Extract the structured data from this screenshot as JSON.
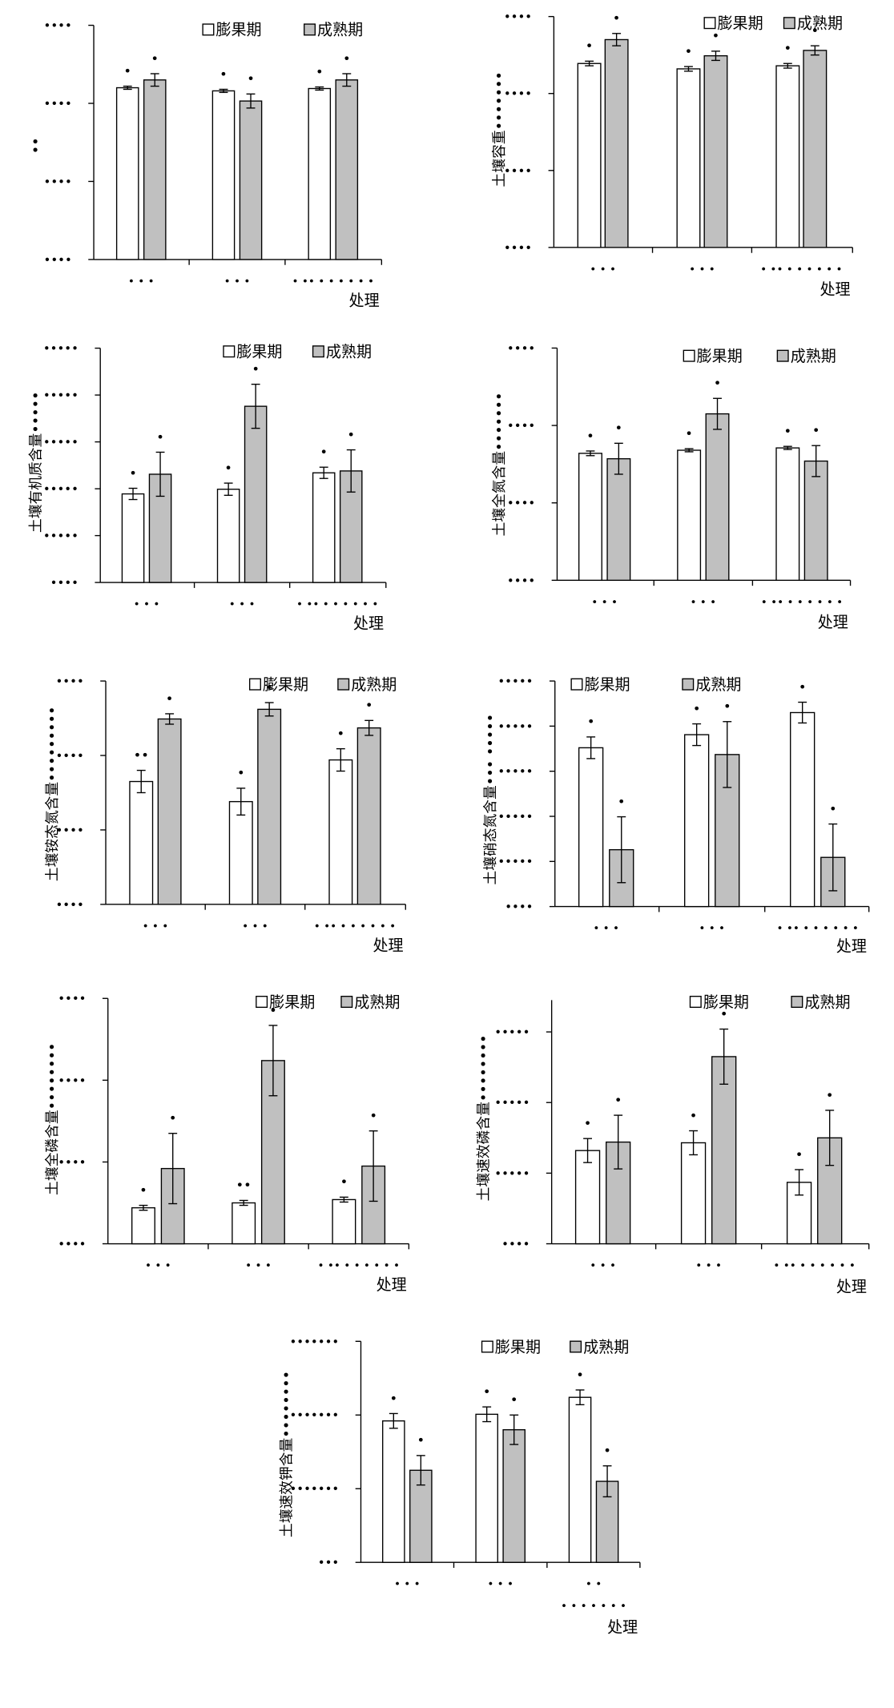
{
  "colors": {
    "series_1_fill": "#ffffff",
    "series_2_fill": "#c0c0c0",
    "line": "#000000"
  },
  "chart_data": [
    {
      "type": "bar",
      "ylabel": "••",
      "xlabel": "处理",
      "legend": "top-right",
      "categories": [
        "• • •",
        "• • •",
        "• •• • • • • • •"
      ],
      "ylim": [
        0,
        3
      ],
      "yticks": [
        0,
        1,
        2,
        3
      ],
      "ytick_labels": [
        "••••",
        "••••",
        "••••",
        "••••"
      ],
      "series": [
        {
          "name": "膨果期",
          "values": [
            2.2,
            2.16,
            2.19
          ],
          "errors": [
            0.02,
            0.02,
            0.02
          ],
          "labels": [
            "•",
            "•",
            "•"
          ]
        },
        {
          "name": "成熟期",
          "values": [
            2.3,
            2.03,
            2.3
          ],
          "errors": [
            0.08,
            0.09,
            0.08
          ],
          "labels": [
            "•",
            "•",
            "•"
          ]
        }
      ]
    },
    {
      "type": "bar",
      "ylabel": "土壤容重•••••••",
      "xlabel": "处理",
      "legend": "top-right",
      "categories": [
        "• • •",
        "• • •",
        "• •• • • • • • •"
      ],
      "ylim": [
        0,
        3
      ],
      "yticks": [
        0,
        1,
        2,
        3
      ],
      "ytick_labels": [
        "••••",
        "••••",
        "••••",
        "••••"
      ],
      "series": [
        {
          "name": "膨果期",
          "values": [
            2.39,
            2.32,
            2.36
          ],
          "errors": [
            0.03,
            0.03,
            0.03
          ],
          "labels": [
            "•",
            "•",
            "•"
          ]
        },
        {
          "name": "成熟期",
          "values": [
            2.7,
            2.49,
            2.56
          ],
          "errors": [
            0.08,
            0.06,
            0.06
          ],
          "labels": [
            "•",
            "•",
            "•"
          ]
        }
      ]
    },
    {
      "type": "bar",
      "ylabel": "土壤有机质含量•••••",
      "xlabel": "处理",
      "legend": "top-right",
      "categories": [
        "• • •",
        "• • •",
        "• •• • • • • • •"
      ],
      "ylim": [
        0,
        5
      ],
      "yticks": [
        0,
        1,
        2,
        3,
        4,
        5
      ],
      "ytick_labels": [
        "••••",
        "•••••",
        "•••••",
        "•••••",
        "•••••",
        "•••••"
      ],
      "series": [
        {
          "name": "膨果期",
          "values": [
            1.89,
            1.99,
            2.34
          ],
          "errors": [
            0.12,
            0.13,
            0.12
          ],
          "labels": [
            "•",
            "•",
            "•"
          ]
        },
        {
          "name": "成熟期",
          "values": [
            2.31,
            3.76,
            2.38
          ],
          "errors": [
            0.47,
            0.47,
            0.45
          ],
          "labels": [
            "•",
            "•",
            "•"
          ]
        }
      ]
    },
    {
      "type": "bar",
      "ylabel": "土壤全氮含量•••••••",
      "xlabel": "处理",
      "legend": "top-right",
      "categories": [
        "• • •",
        "• • •",
        "• •• • • • • • •"
      ],
      "ylim": [
        0,
        3
      ],
      "yticks": [
        0,
        1,
        2,
        3
      ],
      "ytick_labels": [
        "••••",
        "••••",
        "••••",
        "••••"
      ],
      "series": [
        {
          "name": "膨果期",
          "values": [
            1.64,
            1.68,
            1.71
          ],
          "errors": [
            0.03,
            0.02,
            0.02
          ],
          "labels": [
            "•",
            "•",
            "•"
          ]
        },
        {
          "name": "成熟期",
          "values": [
            1.57,
            2.15,
            1.54
          ],
          "errors": [
            0.2,
            0.2,
            0.2
          ],
          "labels": [
            "•",
            "•",
            "•"
          ]
        }
      ]
    },
    {
      "type": "bar",
      "ylabel": "土壤铵态氮含量•••••••••",
      "xlabel": "处理",
      "legend": "top-right",
      "categories": [
        "• • •",
        "• • •",
        "• •• • • • • • •"
      ],
      "ylim": [
        0,
        3
      ],
      "yticks": [
        0,
        1,
        2,
        3
      ],
      "ytick_labels": [
        "••••",
        "••••",
        "••••",
        "••••"
      ],
      "series": [
        {
          "name": "膨果期",
          "values": [
            1.65,
            1.38,
            1.94
          ],
          "errors": [
            0.15,
            0.18,
            0.15
          ],
          "labels": [
            "••",
            "•",
            "•"
          ]
        },
        {
          "name": "成熟期",
          "values": [
            2.49,
            2.62,
            2.37
          ],
          "errors": [
            0.07,
            0.09,
            0.1
          ],
          "labels": [
            "•",
            "•",
            "•"
          ]
        }
      ]
    },
    {
      "type": "bar",
      "ylabel": "土壤硝态氮含量••• •••••",
      "xlabel": "处理",
      "legend": "top-right",
      "categories": [
        "• • •",
        "• • •",
        "• •• • • • • • •"
      ],
      "ylim": [
        0,
        5
      ],
      "yticks": [
        0,
        1,
        2,
        3,
        4,
        5
      ],
      "ytick_labels": [
        "••••",
        "•••••",
        "•••••",
        "•••••",
        "•••••",
        "•••••"
      ],
      "series": [
        {
          "name": "膨果期",
          "values": [
            3.52,
            3.81,
            4.3
          ],
          "errors": [
            0.24,
            0.24,
            0.23
          ],
          "labels": [
            "•",
            "•",
            "•"
          ]
        },
        {
          "name": "成熟期",
          "values": [
            1.26,
            3.37,
            1.09
          ],
          "errors": [
            0.73,
            0.73,
            0.74
          ],
          "labels": [
            "•",
            "•",
            "•"
          ]
        }
      ]
    },
    {
      "type": "bar",
      "ylabel": "土壤全磷含量••••••••",
      "xlabel": "处理",
      "legend": "top-right",
      "categories": [
        "• • •",
        "• • •",
        "• •• • • • • • •"
      ],
      "ylim": [
        0,
        3
      ],
      "yticks": [
        0,
        1,
        2,
        3
      ],
      "ytick_labels": [
        "••••",
        "••••",
        "••••",
        "••••"
      ],
      "series": [
        {
          "name": "膨果期",
          "values": [
            0.44,
            0.5,
            0.54
          ],
          "errors": [
            0.03,
            0.03,
            0.03
          ],
          "labels": [
            "•",
            "••",
            "•"
          ]
        },
        {
          "name": "成熟期",
          "values": [
            0.92,
            2.24,
            0.95
          ],
          "errors": [
            0.43,
            0.43,
            0.43
          ],
          "labels": [
            "•",
            "•",
            "•"
          ]
        }
      ]
    },
    {
      "type": "bar",
      "ylabel": "土壤速效磷含量••••••••",
      "xlabel": "处理",
      "legend": "top-right",
      "categories": [
        "• • •",
        "• • •",
        "• •• • • • • • •"
      ],
      "ylim": [
        0,
        3.45
      ],
      "yticks": [
        0,
        1,
        2,
        3
      ],
      "ytick_labels": [
        "••••",
        "•••••",
        "•••••",
        "•••••"
      ],
      "series": [
        {
          "name": "膨果期",
          "values": [
            1.32,
            1.43,
            0.87
          ],
          "errors": [
            0.17,
            0.17,
            0.18
          ],
          "labels": [
            "•",
            "•",
            "•"
          ]
        },
        {
          "name": "成熟期",
          "values": [
            1.44,
            2.65,
            1.5
          ],
          "errors": [
            0.38,
            0.39,
            0.39
          ],
          "labels": [
            "•",
            "•",
            "•"
          ]
        }
      ]
    },
    {
      "type": "bar",
      "ylabel": "土壤速效钾含量••••••••",
      "xlabel": "处理",
      "legend": "top-right",
      "categories": [
        "• • •",
        "• • •",
        [
          "• •",
          "• • • • • • •"
        ]
      ],
      "ylim": [
        0,
        3
      ],
      "yticks": [
        0,
        1,
        2,
        3
      ],
      "ytick_labels": [
        "•••",
        "•••••••",
        "•••••••",
        "•••••••"
      ],
      "series": [
        {
          "name": "膨果期",
          "values": [
            1.92,
            2.01,
            2.24
          ],
          "errors": [
            0.1,
            0.1,
            0.1
          ],
          "labels": [
            "•",
            "•",
            "•"
          ]
        },
        {
          "name": "成熟期",
          "values": [
            1.25,
            1.8,
            1.1
          ],
          "errors": [
            0.2,
            0.2,
            0.21
          ],
          "labels": [
            "•",
            "•",
            "•"
          ]
        }
      ]
    }
  ]
}
